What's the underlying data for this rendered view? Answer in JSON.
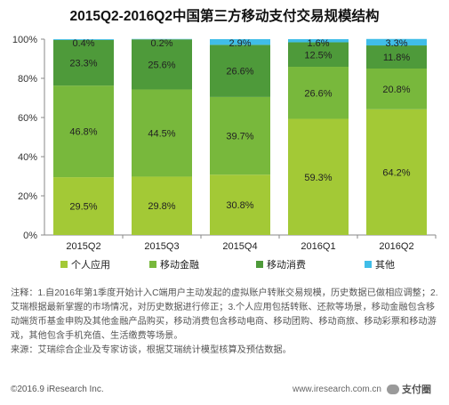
{
  "title": "2015Q2-2016Q2中国第三方移动支付交易规模结构",
  "chart_data": {
    "type": "bar",
    "stacked": true,
    "categories": [
      "2015Q2",
      "2015Q3",
      "2015Q4",
      "2016Q1",
      "2016Q2"
    ],
    "series": [
      {
        "name": "个人应用",
        "color": "#a3c936",
        "values": [
          29.5,
          29.8,
          30.8,
          59.3,
          64.2
        ],
        "labels": [
          "29.5%",
          "29.8%",
          "30.8%",
          "59.3%",
          "64.2%"
        ]
      },
      {
        "name": "移动金融",
        "color": "#78b83c",
        "values": [
          46.8,
          44.5,
          39.7,
          26.6,
          20.8
        ],
        "labels": [
          "46.8%",
          "44.5%",
          "39.7%",
          "26.6%",
          "20.8%"
        ]
      },
      {
        "name": "移动消费",
        "color": "#4e9a3a",
        "values": [
          23.3,
          25.6,
          26.6,
          12.5,
          11.8
        ],
        "labels": [
          "23.3%",
          "25.6%",
          "26.6%",
          "12.5%",
          "11.8%"
        ]
      },
      {
        "name": "其他",
        "color": "#40bde8",
        "values": [
          0.4,
          0.2,
          2.9,
          1.6,
          3.3
        ],
        "labels": [
          "0.4%",
          "0.2%",
          "2.9%",
          "1.6%",
          "3.3%"
        ]
      }
    ],
    "yticks": [
      "0%",
      "20%",
      "40%",
      "60%",
      "80%",
      "100%"
    ],
    "ylim": [
      0,
      100
    ],
    "legend": "bottom",
    "grid": false
  },
  "notes": [
    "注释：1.自2016年第1季度开始计入C端用户主动发起的虚拟账户转账交易规模，历史数据已做相应调整；2.艾瑞根据最新掌握的市场情况，对历史数据进行修正；3.个人应用包括转账、还款等场景，移动金融包含移动端货币基金申购及其他金融产品购买，移动消费包含移动电商、移动团购、移动商旅、移动彩票和移动游戏，其他包含手机充值、生活缴费等场景。",
    "来源：艾瑞综合企业及专家访谈，根据艾瑞统计模型核算及预估数据。"
  ],
  "footer": {
    "copyright": "©2016.9 iResearch Inc.",
    "url": "www.iresearch.com.cn",
    "wechat": "支付圈"
  }
}
